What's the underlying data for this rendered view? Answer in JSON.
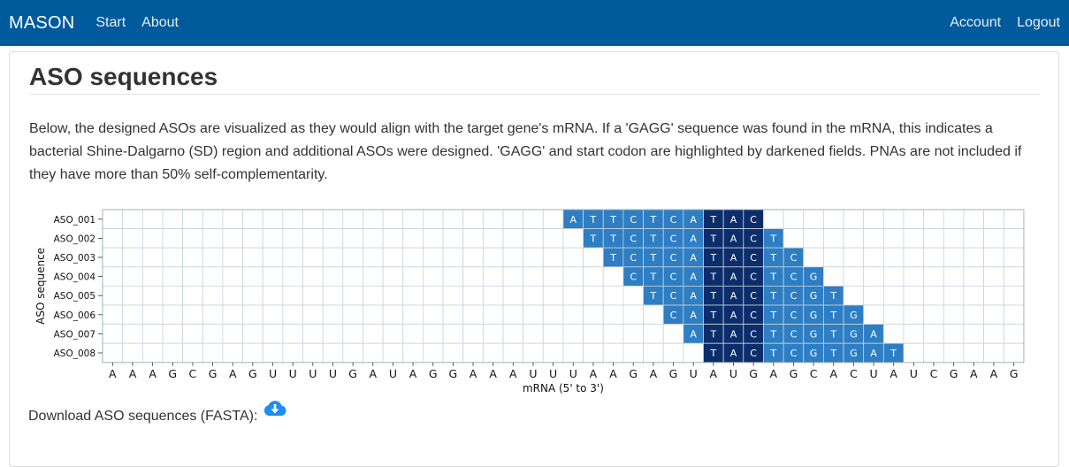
{
  "navbar": {
    "brand": "MASON",
    "links": [
      "Start",
      "About"
    ],
    "right_links": [
      "Account",
      "Logout"
    ]
  },
  "page": {
    "title": "ASO sequences",
    "intro": "Below, the designed ASOs are visualized as they would align with the target gene's mRNA. If a 'GAGG' sequence was found in the mRNA, this indicates a bacterial Shine-Dalgarno (SD) region and additional ASOs were designed. 'GAGG' and start codon are highlighted by darkened fields. PNAs are not included if they have more than 50% self-complementarity.",
    "download_label": "Download ASO sequences (FASTA):"
  },
  "chart_data": {
    "type": "heatmap",
    "xlabel": "mRNA (5' to 3')",
    "ylabel": "ASO sequence",
    "mrna": [
      "A",
      "A",
      "A",
      "G",
      "C",
      "G",
      "A",
      "G",
      "U",
      "U",
      "U",
      "U",
      "G",
      "A",
      "U",
      "A",
      "G",
      "G",
      "A",
      "A",
      "A",
      "U",
      "U",
      "U",
      "A",
      "A",
      "G",
      "A",
      "G",
      "U",
      "A",
      "U",
      "G",
      "A",
      "G",
      "C",
      "A",
      "C",
      "U",
      "A",
      "U",
      "C",
      "G",
      "A",
      "A",
      "G"
    ],
    "highlight_positions": [
      30,
      31,
      32
    ],
    "asos": [
      {
        "name": "ASO_001",
        "start": 23,
        "sequence": "ATTCTCATAC"
      },
      {
        "name": "ASO_002",
        "start": 24,
        "sequence": "TTCTCATACT"
      },
      {
        "name": "ASO_003",
        "start": 25,
        "sequence": "TCTCATACTC"
      },
      {
        "name": "ASO_004",
        "start": 26,
        "sequence": "CTCATACTCG"
      },
      {
        "name": "ASO_005",
        "start": 27,
        "sequence": "TCATACTCGT"
      },
      {
        "name": "ASO_006",
        "start": 28,
        "sequence": "CATACTCGTG"
      },
      {
        "name": "ASO_007",
        "start": 29,
        "sequence": "ATACTCGTGA"
      },
      {
        "name": "ASO_008",
        "start": 30,
        "sequence": "TACTCGTGAT"
      }
    ],
    "colors": {
      "cell": "#2e7ec3",
      "highlight": "#0b2d6b",
      "empty": "#ffffff",
      "grid": "#c9d3dd"
    }
  }
}
